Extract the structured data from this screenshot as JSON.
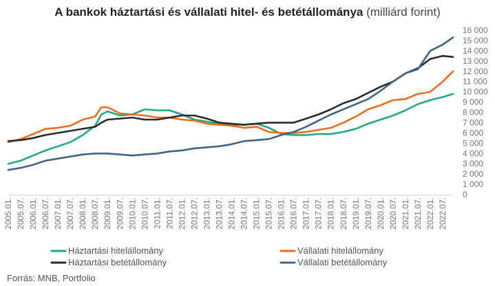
{
  "chart_data": {
    "type": "line",
    "title": "A bankok háztartási és vállalati hitel- és betétállománya",
    "subtitle": "(milliárd forint)",
    "source": "Forrás: MNB, Portfolio",
    "xlabel": "",
    "ylabel": "",
    "ylim": [
      0,
      16000
    ],
    "y_ticks": [
      0,
      1000,
      2000,
      3000,
      4000,
      5000,
      6000,
      7000,
      8000,
      9000,
      10000,
      11000,
      12000,
      13000,
      14000,
      15000,
      16000
    ],
    "y_tick_labels": [
      "0",
      "1 000",
      "2 000",
      "3 000",
      "4 000",
      "5 000",
      "6 000",
      "7 000",
      "8 000",
      "9 000",
      "10 000",
      "11 000",
      "12 000",
      "13 000",
      "14 000",
      "15 000",
      "16 000"
    ],
    "x_tick_labels": [
      "2005.01.",
      "2005.07.",
      "2006.01.",
      "2006.07.",
      "2007.01.",
      "2007.07.",
      "2008.01.",
      "2008.07.",
      "2009.01.",
      "2009.07.",
      "2010.01.",
      "2010.07.",
      "2011.01.",
      "2011.07.",
      "2012.01.",
      "2012.07.",
      "2013.01.",
      "2013.07.",
      "2014.01.",
      "2014.07.",
      "2015.01.",
      "2015.07.",
      "2016.01.",
      "2016.07.",
      "2017.01.",
      "2017.07.",
      "2018.01.",
      "2018.07.",
      "2019.01.",
      "2019.07.",
      "2020.01.",
      "2020.07.",
      "2021.01.",
      "2021.07.",
      "2022.01.",
      "2022.07."
    ],
    "x_range": [
      "2005.01.",
      "2022.12."
    ],
    "y_axis_position": "right",
    "grid": false,
    "legend_position": "bottom",
    "series": [
      {
        "name": "Háztartási hitelállomány",
        "color": "#1faa83",
        "points": [
          [
            "2005.01.",
            3000
          ],
          [
            "2005.07.",
            3300
          ],
          [
            "2006.01.",
            3800
          ],
          [
            "2006.07.",
            4300
          ],
          [
            "2007.01.",
            4700
          ],
          [
            "2007.07.",
            5100
          ],
          [
            "2008.01.",
            5800
          ],
          [
            "2008.07.",
            6700
          ],
          [
            "2008.10.",
            7800
          ],
          [
            "2009.01.",
            8100
          ],
          [
            "2009.07.",
            7700
          ],
          [
            "2010.01.",
            7800
          ],
          [
            "2010.07.",
            8300
          ],
          [
            "2011.01.",
            8200
          ],
          [
            "2011.07.",
            8200
          ],
          [
            "2012.01.",
            7800
          ],
          [
            "2012.07.",
            7300
          ],
          [
            "2013.01.",
            7100
          ],
          [
            "2013.07.",
            6900
          ],
          [
            "2014.01.",
            6800
          ],
          [
            "2014.07.",
            6800
          ],
          [
            "2015.01.",
            6900
          ],
          [
            "2015.07.",
            6500
          ],
          [
            "2016.01.",
            5900
          ],
          [
            "2016.07.",
            5800
          ],
          [
            "2017.01.",
            5800
          ],
          [
            "2017.07.",
            5900
          ],
          [
            "2018.01.",
            5900
          ],
          [
            "2018.07.",
            6100
          ],
          [
            "2019.01.",
            6400
          ],
          [
            "2019.07.",
            6900
          ],
          [
            "2020.01.",
            7300
          ],
          [
            "2020.07.",
            7700
          ],
          [
            "2021.01.",
            8200
          ],
          [
            "2021.07.",
            8800
          ],
          [
            "2022.01.",
            9200
          ],
          [
            "2022.07.",
            9500
          ],
          [
            "2022.12.",
            9800
          ]
        ]
      },
      {
        "name": "Vállalati hitelállomány",
        "color": "#f26a1b",
        "points": [
          [
            "2005.01.",
            5100
          ],
          [
            "2005.07.",
            5400
          ],
          [
            "2006.01.",
            5900
          ],
          [
            "2006.07.",
            6400
          ],
          [
            "2007.01.",
            6500
          ],
          [
            "2007.07.",
            6700
          ],
          [
            "2008.01.",
            7300
          ],
          [
            "2008.07.",
            7600
          ],
          [
            "2008.10.",
            8500
          ],
          [
            "2009.01.",
            8500
          ],
          [
            "2009.07.",
            7900
          ],
          [
            "2010.01.",
            7800
          ],
          [
            "2010.07.",
            7700
          ],
          [
            "2011.01.",
            7500
          ],
          [
            "2011.07.",
            7500
          ],
          [
            "2012.01.",
            7300
          ],
          [
            "2012.07.",
            7200
          ],
          [
            "2013.01.",
            6900
          ],
          [
            "2013.07.",
            6800
          ],
          [
            "2014.01.",
            6700
          ],
          [
            "2014.07.",
            6500
          ],
          [
            "2015.01.",
            6600
          ],
          [
            "2015.07.",
            6100
          ],
          [
            "2016.01.",
            6000
          ],
          [
            "2016.07.",
            6000
          ],
          [
            "2017.01.",
            6100
          ],
          [
            "2017.07.",
            6300
          ],
          [
            "2018.01.",
            6500
          ],
          [
            "2018.07.",
            7000
          ],
          [
            "2019.01.",
            7600
          ],
          [
            "2019.07.",
            8300
          ],
          [
            "2020.01.",
            8700
          ],
          [
            "2020.07.",
            9200
          ],
          [
            "2021.01.",
            9300
          ],
          [
            "2021.07.",
            9800
          ],
          [
            "2022.01.",
            10000
          ],
          [
            "2022.07.",
            11000
          ],
          [
            "2022.12.",
            12000
          ]
        ]
      },
      {
        "name": "Háztartási betétállomány",
        "color": "#2a2a2a",
        "points": [
          [
            "2005.01.",
            5200
          ],
          [
            "2005.07.",
            5300
          ],
          [
            "2006.01.",
            5500
          ],
          [
            "2006.07.",
            5800
          ],
          [
            "2007.01.",
            6000
          ],
          [
            "2007.07.",
            6200
          ],
          [
            "2008.01.",
            6400
          ],
          [
            "2008.07.",
            6600
          ],
          [
            "2008.10.",
            7000
          ],
          [
            "2009.01.",
            7300
          ],
          [
            "2009.07.",
            7400
          ],
          [
            "2010.01.",
            7500
          ],
          [
            "2010.07.",
            7300
          ],
          [
            "2011.01.",
            7300
          ],
          [
            "2011.07.",
            7500
          ],
          [
            "2012.01.",
            7700
          ],
          [
            "2012.07.",
            7700
          ],
          [
            "2013.01.",
            7400
          ],
          [
            "2013.07.",
            7000
          ],
          [
            "2014.01.",
            6900
          ],
          [
            "2014.07.",
            6800
          ],
          [
            "2015.01.",
            6900
          ],
          [
            "2015.07.",
            7000
          ],
          [
            "2016.01.",
            7000
          ],
          [
            "2016.07.",
            7000
          ],
          [
            "2017.01.",
            7400
          ],
          [
            "2017.07.",
            7800
          ],
          [
            "2018.01.",
            8300
          ],
          [
            "2018.07.",
            8900
          ],
          [
            "2019.01.",
            9300
          ],
          [
            "2019.07.",
            9900
          ],
          [
            "2020.01.",
            10500
          ],
          [
            "2020.07.",
            11000
          ],
          [
            "2021.01.",
            11800
          ],
          [
            "2021.07.",
            12300
          ],
          [
            "2022.01.",
            13200
          ],
          [
            "2022.07.",
            13500
          ],
          [
            "2022.12.",
            13400
          ]
        ]
      },
      {
        "name": "Vállalati betétállomány",
        "color": "#3f6486",
        "points": [
          [
            "2005.01.",
            2400
          ],
          [
            "2005.07.",
            2600
          ],
          [
            "2006.01.",
            2900
          ],
          [
            "2006.07.",
            3300
          ],
          [
            "2007.01.",
            3500
          ],
          [
            "2007.07.",
            3700
          ],
          [
            "2008.01.",
            3900
          ],
          [
            "2008.07.",
            4000
          ],
          [
            "2009.01.",
            4000
          ],
          [
            "2009.07.",
            3900
          ],
          [
            "2010.01.",
            3800
          ],
          [
            "2010.07.",
            3900
          ],
          [
            "2011.01.",
            4000
          ],
          [
            "2011.07.",
            4200
          ],
          [
            "2012.01.",
            4300
          ],
          [
            "2012.07.",
            4500
          ],
          [
            "2013.01.",
            4600
          ],
          [
            "2013.07.",
            4700
          ],
          [
            "2014.01.",
            4900
          ],
          [
            "2014.07.",
            5200
          ],
          [
            "2015.01.",
            5300
          ],
          [
            "2015.07.",
            5400
          ],
          [
            "2016.01.",
            5800
          ],
          [
            "2016.07.",
            6100
          ],
          [
            "2017.01.",
            6600
          ],
          [
            "2017.07.",
            7200
          ],
          [
            "2018.01.",
            7800
          ],
          [
            "2018.07.",
            8300
          ],
          [
            "2019.01.",
            8800
          ],
          [
            "2019.07.",
            9300
          ],
          [
            "2020.01.",
            10100
          ],
          [
            "2020.07.",
            11000
          ],
          [
            "2021.01.",
            11800
          ],
          [
            "2021.07.",
            12200
          ],
          [
            "2022.01.",
            14000
          ],
          [
            "2022.07.",
            14600
          ],
          [
            "2022.12.",
            15300
          ]
        ]
      }
    ]
  }
}
